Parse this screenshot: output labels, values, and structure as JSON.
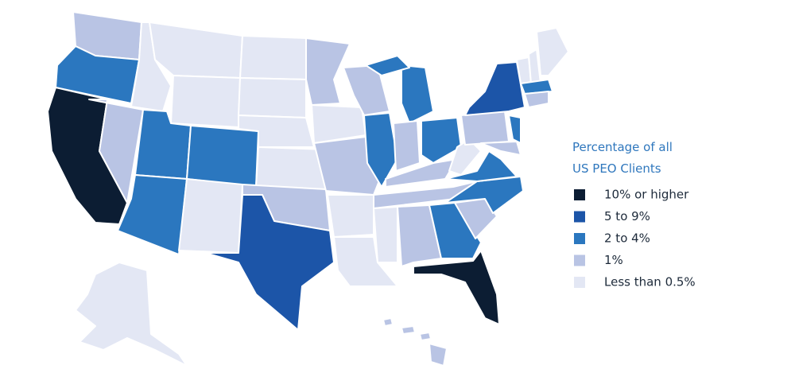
{
  "legend": {
    "title": [
      "Percentage of all",
      "US PEO Clients"
    ],
    "items": [
      {
        "label": "10% or higher",
        "color": "#0c1d33"
      },
      {
        "label": "5 to 9%",
        "color": "#1c55a8"
      },
      {
        "label": "2 to 4%",
        "color": "#2b77bf"
      },
      {
        "label": "1%",
        "color": "#b9c4e4"
      },
      {
        "label": "Less than 0.5%",
        "color": "#e3e7f4"
      }
    ]
  }
}
